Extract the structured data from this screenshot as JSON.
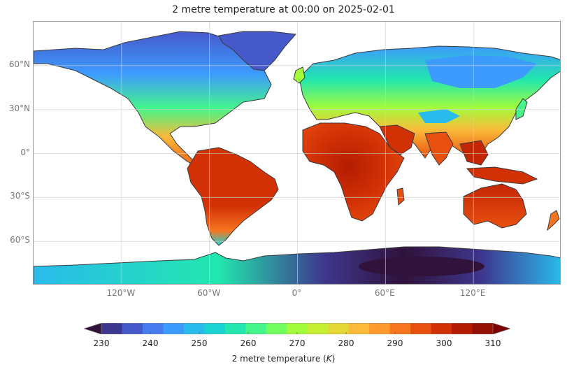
{
  "title": "2 metre temperature at 00:00 on 2025-02-01",
  "map": {
    "projection": "plate-carree",
    "extent": {
      "lon_min": -180,
      "lon_max": 180,
      "lat_min": -90,
      "lat_max": 90
    },
    "gridlines": true,
    "coastlines": true,
    "lat_labels": [
      "60°N",
      "30°N",
      "0°",
      "30°S",
      "60°S"
    ],
    "lat_values": [
      60,
      30,
      0,
      -30,
      -60
    ],
    "lon_labels": [
      "120°W",
      "60°W",
      "0°",
      "60°E",
      "120°E"
    ],
    "lon_values": [
      -120,
      -60,
      0,
      60,
      120
    ],
    "field_description_colors": {
      "polar_cold": "#30123b",
      "cold": "#4777ef",
      "mid": "#1bd0d5",
      "mild": "#a4fc3c",
      "warm": "#fb7e21",
      "hot": "#c42503",
      "very_hot": "#7a0403"
    }
  },
  "colorbar": {
    "label_text": "2 metre temperature (",
    "label_unit": "K",
    "label_close": ")",
    "min": 230,
    "max": 310,
    "extend": "both",
    "tick_labels": [
      "230",
      "240",
      "250",
      "260",
      "270",
      "280",
      "290",
      "300",
      "310"
    ],
    "tick_values": [
      230,
      240,
      250,
      260,
      270,
      280,
      290,
      300,
      310
    ],
    "colormap": "turbo",
    "colors": [
      "#30123b",
      "#3e378f",
      "#4559cb",
      "#467bf0",
      "#3d9bfe",
      "#29bbec",
      "#1ad4d3",
      "#22e7ae",
      "#44f689",
      "#72fe5e",
      "#a2fc3c",
      "#c6ee33",
      "#e5d736",
      "#fbba39",
      "#fe9a2e",
      "#f7751f",
      "#e85010",
      "#d23105",
      "#b41c02",
      "#941002",
      "#7a0403"
    ]
  }
}
